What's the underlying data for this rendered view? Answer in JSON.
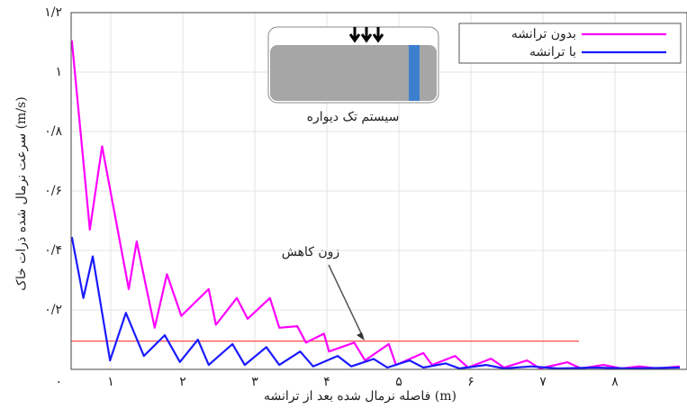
{
  "chart_data": {
    "type": "line",
    "y_label": "سرعت نرمال شده ذرات خاک (m/s)",
    "x_label": "فاصله نرمال شده بعد از ترانشه (m)",
    "annotation": "زون کاهش",
    "inset_caption": "سیستم تک دیواره",
    "xlim": [
      0.45,
      9
    ],
    "ylim": [
      0,
      1.2
    ],
    "xticks": [
      {
        "value": 1,
        "label": "۱"
      },
      {
        "value": 2,
        "label": "۲"
      },
      {
        "value": 3,
        "label": "۳"
      },
      {
        "value": 4,
        "label": "۴"
      },
      {
        "value": 5,
        "label": "۵"
      },
      {
        "value": 6,
        "label": "۶"
      },
      {
        "value": 7,
        "label": "۷"
      },
      {
        "value": 8,
        "label": "۸"
      }
    ],
    "yticks": [
      {
        "value": 0,
        "label": "۰"
      },
      {
        "value": 0.2,
        "label": "۰/۲"
      },
      {
        "value": 0.4,
        "label": "۰/۴"
      },
      {
        "value": 0.6,
        "label": "۰/۶"
      },
      {
        "value": 0.8,
        "label": "۰/۸"
      },
      {
        "value": 1,
        "label": "۱"
      },
      {
        "value": 1.2,
        "label": "۱/۲"
      }
    ],
    "grid": true,
    "legend": "top-right",
    "reference_line": {
      "y": 0.095,
      "xlim": [
        0.45,
        7.5
      ],
      "color": "#ff4d4d"
    },
    "series": [
      {
        "name": "بدون ترانشه",
        "color": "#ff00ff",
        "x": [
          0.46,
          0.71,
          0.88,
          1.25,
          1.36,
          1.61,
          1.78,
          1.98,
          2.36,
          2.46,
          2.75,
          2.9,
          3.21,
          3.34,
          3.59,
          3.71,
          3.96,
          4.03,
          4.38,
          4.53,
          4.86,
          4.96,
          5.34,
          5.46,
          5.78,
          5.96,
          6.28,
          6.46,
          6.78,
          6.96,
          7.34,
          7.53,
          7.84,
          8.09,
          8.34,
          8.59,
          8.9
        ],
        "values": [
          1.106,
          0.47,
          0.75,
          0.27,
          0.43,
          0.14,
          0.32,
          0.18,
          0.27,
          0.15,
          0.24,
          0.17,
          0.24,
          0.14,
          0.145,
          0.09,
          0.12,
          0.06,
          0.09,
          0.03,
          0.085,
          0.015,
          0.055,
          0.015,
          0.045,
          0.006,
          0.036,
          0.006,
          0.03,
          0.003,
          0.024,
          0.003,
          0.015,
          0.003,
          0.01,
          0.003,
          0.01
        ]
      },
      {
        "name": "با ترانشه",
        "color": "#1a1aff",
        "x": [
          0.46,
          0.62,
          0.75,
          0.99,
          1.21,
          1.46,
          1.75,
          1.96,
          2.21,
          2.36,
          2.69,
          2.86,
          3.16,
          3.34,
          3.63,
          3.81,
          4.15,
          4.34,
          4.65,
          4.84,
          5.15,
          5.34,
          5.65,
          5.84,
          6.21,
          6.46,
          6.84,
          7.21,
          7.71,
          8.21,
          8.9
        ],
        "values": [
          0.445,
          0.24,
          0.38,
          0.03,
          0.19,
          0.045,
          0.115,
          0.025,
          0.1,
          0.015,
          0.085,
          0.015,
          0.075,
          0.015,
          0.06,
          0.01,
          0.045,
          0.01,
          0.035,
          0.006,
          0.03,
          0.006,
          0.02,
          0.003,
          0.015,
          0.003,
          0.01,
          0.003,
          0.006,
          0.003,
          0.006
        ]
      }
    ]
  }
}
